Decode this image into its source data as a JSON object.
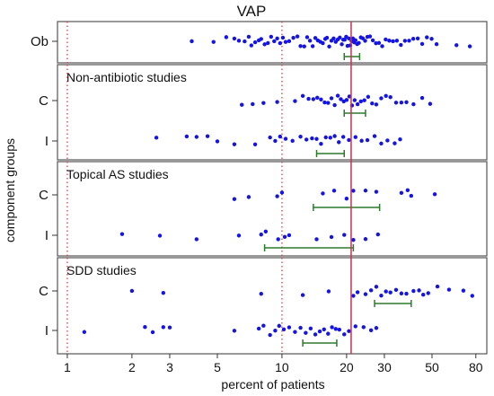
{
  "chart_data": {
    "type": "scatter",
    "title": "VAP",
    "xlabel": "percent of patients",
    "ylabel": "component groups",
    "x_scale": "log",
    "xlim": [
      0.9,
      90
    ],
    "x_ticks": [
      1,
      2,
      3,
      5,
      10,
      20,
      30,
      50,
      80
    ],
    "reference_lines": {
      "dotted_red": [
        1,
        10
      ],
      "solid_red": 21
    },
    "colors": {
      "points": "#1414e6",
      "ci": "#2d7a2d",
      "dotted_line": "#e04040",
      "solid_line": "#c83250",
      "frame": "#555555"
    },
    "panels": [
      {
        "label": "",
        "rows": [
          {
            "label": "Ob",
            "ci": [
              19.5,
              23
            ],
            "points": [
              3.8,
              4.8,
              5.5,
              6.0,
              6.3,
              6.7,
              7.0,
              7.2,
              7.5,
              7.8,
              8.0,
              8.3,
              8.6,
              8.9,
              9.2,
              9.5,
              9.8,
              10.1,
              10.4,
              10.8,
              11.3,
              11.8,
              12.2,
              12.7,
              13.1,
              13.5,
              13.9,
              14.3,
              14.7,
              15.1,
              15.5,
              15.9,
              16.2,
              16.6,
              17.0,
              17.4,
              17.8,
              18.2,
              18.6,
              19.0,
              19.3,
              19.6,
              19.9,
              20.2,
              20.5,
              20.8,
              21.1,
              21.4,
              21.7,
              22.0,
              22.4,
              22.8,
              23.3,
              23.8,
              24.4,
              25.0,
              25.7,
              26.5,
              27.4,
              28.3,
              29.3,
              30.4,
              31.6,
              32.9,
              34.3,
              35.8,
              37.4,
              39.1,
              40.9,
              42.9,
              45.0,
              47.3,
              49.8,
              52.5,
              65.0,
              75.0
            ]
          }
        ]
      },
      {
        "label": "Non-antibiotic studies",
        "rows": [
          {
            "label": "C",
            "ci": [
              19.5,
              24.5
            ],
            "points": [
              6.5,
              7.3,
              8.2,
              9.5,
              11.5,
              12.5,
              13.3,
              14.0,
              14.6,
              15.2,
              15.8,
              16.4,
              17.0,
              17.6,
              18.2,
              18.8,
              19.4,
              20.0,
              20.6,
              21.2,
              21.8,
              22.5,
              23.3,
              24.2,
              25.2,
              26.3,
              27.5,
              29.0,
              30.5,
              32.0,
              34.0,
              36.0,
              38.0,
              41.0,
              45.0,
              49.0
            ]
          },
          {
            "label": "I",
            "ci": [
              14.5,
              19.5
            ],
            "points": [
              2.6,
              3.6,
              4.0,
              4.5,
              5.0,
              6.0,
              7.5,
              8.8,
              9.3,
              9.8,
              10.4,
              11.2,
              12.2,
              13.0,
              13.8,
              14.5,
              15.2,
              16.0,
              16.8,
              17.6,
              18.4,
              19.3,
              20.5,
              22.0,
              23.5,
              25.0,
              27.0,
              29.0,
              31.0,
              33.5,
              35.5
            ]
          }
        ]
      },
      {
        "label": "Topical AS studies",
        "rows": [
          {
            "label": "C",
            "ci": [
              14.0,
              28.5
            ],
            "points": [
              6.0,
              7.0,
              9.5,
              10.0,
              15.5,
              17.5,
              20.0,
              21.5,
              24.5,
              27.5,
              36.0,
              38.5,
              40.0,
              51.5
            ]
          },
          {
            "label": "I",
            "ci": [
              8.3,
              21.5
            ],
            "points": [
              1.8,
              2.7,
              4.0,
              6.3,
              8.0,
              8.4,
              9.6,
              10.3,
              10.8,
              14.5,
              17.0,
              19.5,
              21.5,
              24.5,
              28.0
            ]
          }
        ]
      },
      {
        "label": "SDD studies",
        "rows": [
          {
            "label": "C",
            "ci": [
              27.0,
              40.0
            ],
            "points": [
              2.0,
              2.8,
              8.0,
              12.5,
              16.5,
              21.5,
              22.5,
              24.5,
              26.0,
              27.5,
              29.0,
              30.5,
              32.0,
              34.0,
              36.0,
              38.0,
              41.0,
              43.5,
              45.5,
              48.0,
              53.0,
              60.0,
              70.0,
              77.0
            ]
          },
          {
            "label": "I",
            "ci": [
              12.5,
              18.0
            ],
            "points": [
              1.2,
              2.3,
              2.5,
              2.8,
              3.0,
              6.0,
              7.8,
              8.2,
              8.8,
              9.3,
              9.7,
              10.2,
              10.8,
              11.5,
              12.2,
              12.9,
              13.6,
              14.3,
              15.0,
              15.7,
              16.4,
              17.1,
              17.8,
              18.5,
              19.5,
              20.5,
              22.0,
              24.0,
              26.0,
              27.5
            ]
          }
        ]
      }
    ]
  }
}
